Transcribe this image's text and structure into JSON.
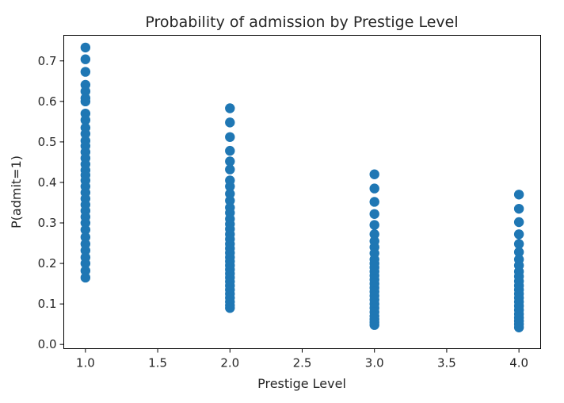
{
  "chart_data": {
    "type": "scatter",
    "title": "Probability of admission by Prestige Level",
    "xlabel": "Prestige Level",
    "ylabel": "P(admit=1)",
    "xlim": [
      0.85,
      4.15
    ],
    "ylim": [
      -0.0104,
      0.7632
    ],
    "xticks": [
      "1.0",
      "1.5",
      "2.0",
      "2.5",
      "3.0",
      "3.5",
      "4.0"
    ],
    "yticks": [
      "0.0",
      "0.1",
      "0.2",
      "0.3",
      "0.4",
      "0.5",
      "0.6",
      "0.7"
    ],
    "grid": false,
    "marker_color": "#1f77b4",
    "series": [
      {
        "x": 1.0,
        "y": [
          0.733,
          0.704,
          0.673,
          0.641,
          0.625,
          0.608,
          0.6,
          0.57,
          0.554,
          0.535,
          0.52,
          0.503,
          0.49,
          0.475,
          0.46,
          0.445,
          0.43,
          0.418,
          0.405,
          0.39,
          0.375,
          0.36,
          0.345,
          0.33,
          0.315,
          0.3,
          0.283,
          0.265,
          0.248,
          0.232,
          0.215,
          0.2,
          0.182,
          0.165
        ]
      },
      {
        "x": 2.0,
        "y": [
          0.583,
          0.548,
          0.512,
          0.478,
          0.452,
          0.432,
          0.405,
          0.39,
          0.372,
          0.355,
          0.338,
          0.325,
          0.31,
          0.297,
          0.285,
          0.272,
          0.26,
          0.248,
          0.237,
          0.226,
          0.215,
          0.205,
          0.195,
          0.185,
          0.175,
          0.165,
          0.155,
          0.145,
          0.135,
          0.125,
          0.115,
          0.105,
          0.097,
          0.09
        ]
      },
      {
        "x": 3.0,
        "y": [
          0.42,
          0.385,
          0.352,
          0.322,
          0.295,
          0.272,
          0.255,
          0.24,
          0.225,
          0.21,
          0.2,
          0.19,
          0.18,
          0.17,
          0.16,
          0.15,
          0.14,
          0.13,
          0.12,
          0.11,
          0.1,
          0.09,
          0.08,
          0.07,
          0.062,
          0.055,
          0.048
        ]
      },
      {
        "x": 4.0,
        "y": [
          0.37,
          0.335,
          0.302,
          0.272,
          0.248,
          0.228,
          0.21,
          0.195,
          0.18,
          0.168,
          0.156,
          0.145,
          0.135,
          0.125,
          0.115,
          0.105,
          0.095,
          0.085,
          0.075,
          0.066,
          0.058,
          0.05,
          0.042
        ]
      }
    ]
  }
}
